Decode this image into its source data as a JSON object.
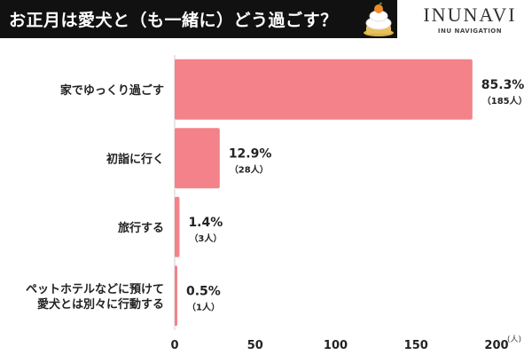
{
  "header": {
    "title": "お正月は愛犬と（も一緒に）どう過ごす？",
    "brand_name": "INUNAVI",
    "brand_sub": "INU NAVIGATION"
  },
  "colors": {
    "title_bg": "#111111",
    "title_text": "#ffffff",
    "bar": "#f4828a",
    "axis": "#cccccc"
  },
  "chart_data": {
    "type": "bar",
    "orientation": "horizontal",
    "categories": [
      [
        "家でゆっくり過ごす"
      ],
      [
        "初詣に行く"
      ],
      [
        "旅行する"
      ],
      [
        "ペットホテルなどに預けて",
        "愛犬とは別々に行動する"
      ]
    ],
    "values": [
      185,
      28,
      3,
      1
    ],
    "percent_labels": [
      "85.3%",
      "12.9%",
      "1.4%",
      "0.5%"
    ],
    "count_labels": [
      "（185人）",
      "（28人）",
      "（3人）",
      "（1人）"
    ],
    "xlim": [
      0,
      200
    ],
    "xticks": [
      0,
      50,
      100,
      150,
      200
    ],
    "xunit": "(人)",
    "grid": false
  }
}
